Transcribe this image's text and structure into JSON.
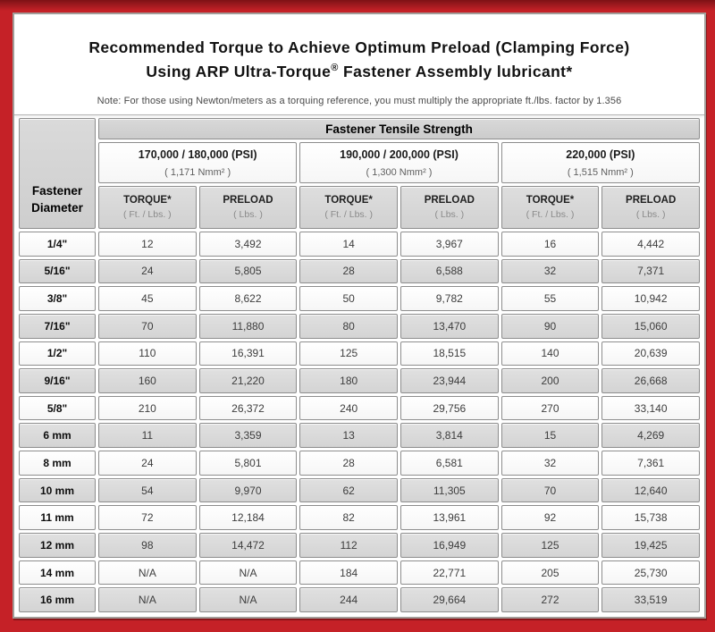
{
  "header": {
    "title_line1": "Recommended Torque to Achieve Optimum Preload (Clamping Force)",
    "title_line2_pre": "Using ARP Ultra-Torque",
    "title_registered": "®",
    "title_line2_post": " Fastener Assembly lubricant*",
    "note": "Note: For those using Newton/meters as a torquing reference, you must multiply the appropriate ft./lbs. factor by 1.356"
  },
  "table": {
    "corner_line1": "Fastener",
    "corner_line2": "Diameter",
    "tensile_header": "Fastener Tensile Strength",
    "groups": [
      {
        "psi": "170,000 / 180,000 (PSI)",
        "nmm": "( 1,171 Nmm² )"
      },
      {
        "psi": "190,000 / 200,000 (PSI)",
        "nmm": "( 1,300 Nmm² )"
      },
      {
        "psi": "220,000 (PSI)",
        "nmm": "( 1,515 Nmm² )"
      }
    ],
    "sub_headers": [
      {
        "label": "TORQUE*",
        "unit": "( Ft. / Lbs. )"
      },
      {
        "label": "PRELOAD",
        "unit": "( Lbs. )"
      }
    ],
    "rows": [
      {
        "diameter": "1/4\"",
        "values": [
          "12",
          "3,492",
          "14",
          "3,967",
          "16",
          "4,442"
        ]
      },
      {
        "diameter": "5/16\"",
        "values": [
          "24",
          "5,805",
          "28",
          "6,588",
          "32",
          "7,371"
        ]
      },
      {
        "diameter": "3/8\"",
        "values": [
          "45",
          "8,622",
          "50",
          "9,782",
          "55",
          "10,942"
        ]
      },
      {
        "diameter": "7/16\"",
        "values": [
          "70",
          "11,880",
          "80",
          "13,470",
          "90",
          "15,060"
        ]
      },
      {
        "diameter": "1/2\"",
        "values": [
          "110",
          "16,391",
          "125",
          "18,515",
          "140",
          "20,639"
        ]
      },
      {
        "diameter": "9/16\"",
        "values": [
          "160",
          "21,220",
          "180",
          "23,944",
          "200",
          "26,668"
        ]
      },
      {
        "diameter": "5/8\"",
        "values": [
          "210",
          "26,372",
          "240",
          "29,756",
          "270",
          "33,140"
        ]
      },
      {
        "diameter": "6 mm",
        "values": [
          "11",
          "3,359",
          "13",
          "3,814",
          "15",
          "4,269"
        ]
      },
      {
        "diameter": "8 mm",
        "values": [
          "24",
          "5,801",
          "28",
          "6,581",
          "32",
          "7,361"
        ]
      },
      {
        "diameter": "10 mm",
        "values": [
          "54",
          "9,970",
          "62",
          "11,305",
          "70",
          "12,640"
        ]
      },
      {
        "diameter": "11 mm",
        "values": [
          "72",
          "12,184",
          "82",
          "13,961",
          "92",
          "15,738"
        ]
      },
      {
        "diameter": "12 mm",
        "values": [
          "98",
          "14,472",
          "112",
          "16,949",
          "125",
          "19,425"
        ]
      },
      {
        "diameter": "14 mm",
        "values": [
          "N/A",
          "N/A",
          "184",
          "22,771",
          "205",
          "25,730"
        ]
      },
      {
        "diameter": "16 mm",
        "values": [
          "N/A",
          "N/A",
          "244",
          "29,664",
          "272",
          "33,519"
        ]
      }
    ]
  },
  "colors": {
    "frame_red": "#c52127",
    "frame_red_dark": "#7d1115",
    "header_gray": "#d3d3d3",
    "alt_row_gray": "#dadada",
    "cell_border": "#8d8d8d",
    "panel_border": "#a19d99"
  }
}
